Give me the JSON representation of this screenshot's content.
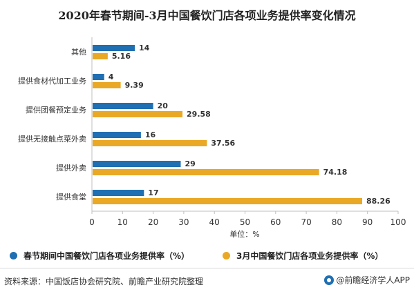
{
  "chart_data": {
    "type": "bar",
    "orientation": "horizontal",
    "title": "2020年春节期间-3月中国餐饮门店各项业务提供率变化情况",
    "xlabel": "单位：%",
    "ylabel": "",
    "xlim": [
      0,
      100
    ],
    "ticks": [
      "0",
      "10",
      "20",
      "30",
      "40",
      "50",
      "60",
      "70",
      "80",
      "90",
      "100"
    ],
    "grid": false,
    "legend_position": "bottom",
    "categories": [
      "其他",
      "提供食材代加工业务",
      "提供团餐预定业务",
      "提供无接触点菜外卖",
      "提供外卖",
      "提供食堂"
    ],
    "series": [
      {
        "name": "春节期间中国餐饮门店各项业务提供率（%）",
        "color": "#1f6fb2",
        "values": [
          14,
          4,
          20,
          16,
          29,
          17
        ]
      },
      {
        "name": "3月中国餐饮门店各项业务提供率（%）",
        "color": "#e9a825",
        "values": [
          5.16,
          9.39,
          29.58,
          37.56,
          74.18,
          88.26
        ]
      }
    ]
  },
  "footer": {
    "source": "资料来源：中国饭店协会研究院、前瞻产业研究院整理",
    "brand": "@前瞻经济学人APP"
  }
}
